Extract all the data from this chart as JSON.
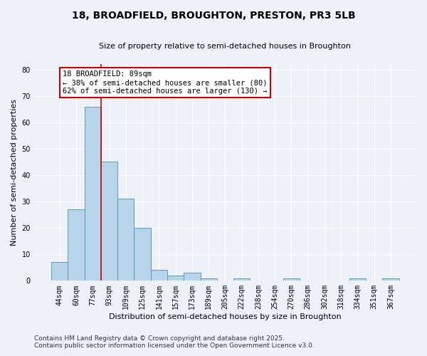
{
  "title": "18, BROADFIELD, BROUGHTON, PRESTON, PR3 5LB",
  "subtitle": "Size of property relative to semi-detached houses in Broughton",
  "xlabel": "Distribution of semi-detached houses by size in Broughton",
  "ylabel": "Number of semi-detached properties",
  "bin_labels": [
    "44sqm",
    "60sqm",
    "77sqm",
    "93sqm",
    "109sqm",
    "125sqm",
    "141sqm",
    "157sqm",
    "173sqm",
    "189sqm",
    "205sqm",
    "222sqm",
    "238sqm",
    "254sqm",
    "270sqm",
    "286sqm",
    "302sqm",
    "318sqm",
    "334sqm",
    "351sqm",
    "367sqm"
  ],
  "bin_counts": [
    7,
    27,
    66,
    45,
    31,
    20,
    4,
    2,
    3,
    1,
    0,
    1,
    0,
    0,
    1,
    0,
    0,
    0,
    1,
    0,
    1
  ],
  "bar_color": "#b8d4e8",
  "bar_edge_color": "#5a9abf",
  "property_size": "89sqm",
  "pct_smaller": 38,
  "n_smaller": 80,
  "pct_larger": 62,
  "n_larger": 130,
  "annotation_line1": "18 BROADFIELD: 89sqm",
  "annotation_line2": "← 38% of semi-detached houses are smaller (80)",
  "annotation_line3": "62% of semi-detached houses are larger (130) →",
  "ylim": [
    0,
    82
  ],
  "yticks": [
    0,
    10,
    20,
    30,
    40,
    50,
    60,
    70,
    80
  ],
  "footer1": "Contains HM Land Registry data © Crown copyright and database right 2025.",
  "footer2": "Contains public sector information licensed under the Open Government Licence v3.0.",
  "bg_color": "#eef2f8",
  "grid_color": "#ffffff",
  "annotation_box_color": "#ffffff",
  "annotation_box_edge_color": "#cc0000",
  "red_line_color": "#cc0000",
  "title_fontsize": 10,
  "subtitle_fontsize": 8,
  "ylabel_fontsize": 8,
  "xlabel_fontsize": 8,
  "tick_fontsize": 7,
  "annotation_fontsize": 7.5,
  "footer_fontsize": 6.5
}
